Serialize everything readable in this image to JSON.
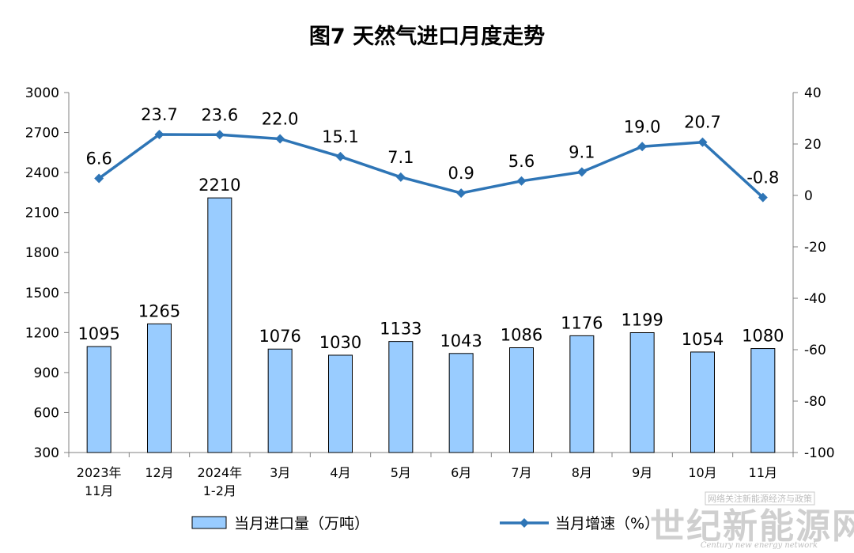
{
  "chart_data": {
    "type": "bar",
    "title": "图7  天然气进口月度走势",
    "categories": [
      [
        "2023年",
        "11月"
      ],
      [
        "12月"
      ],
      [
        "2024年",
        "1-2月"
      ],
      [
        "3月"
      ],
      [
        "4月"
      ],
      [
        "5月"
      ],
      [
        "6月"
      ],
      [
        "7月"
      ],
      [
        "8月"
      ],
      [
        "9月"
      ],
      [
        "10月"
      ],
      [
        "11月"
      ]
    ],
    "series": [
      {
        "name": "当月进口量（万吨）",
        "kind": "bar",
        "axis": "left",
        "color": "#99ccff",
        "values": [
          1095,
          1265,
          2210,
          1076,
          1030,
          1133,
          1043,
          1086,
          1176,
          1199,
          1054,
          1080
        ],
        "labels": [
          "1095",
          "1265",
          "2210",
          "1076",
          "1030",
          "1133",
          "1043",
          "1086",
          "1176",
          "1199",
          "1054",
          "1080"
        ]
      },
      {
        "name": "当月增速（%）",
        "kind": "line",
        "axis": "right",
        "color": "#2e75b6",
        "values": [
          6.6,
          23.7,
          23.6,
          22.0,
          15.1,
          7.1,
          0.9,
          5.6,
          9.1,
          19.0,
          20.7,
          -0.8
        ],
        "labels": [
          "6.6",
          "23.7",
          "23.6",
          "22.0",
          "15.1",
          "7.1",
          "0.9",
          "5.6",
          "9.1",
          "19.0",
          "20.7",
          "-0.8"
        ]
      }
    ],
    "y_left": {
      "min": 300,
      "max": 3000,
      "step": 300,
      "ticks": [
        "300",
        "600",
        "900",
        "1200",
        "1500",
        "1800",
        "2100",
        "2400",
        "2700",
        "3000"
      ]
    },
    "y_right": {
      "min": -100,
      "max": 40,
      "step": 20,
      "ticks": [
        "-100",
        "-80",
        "-60",
        "-40",
        "-20",
        "0",
        "20",
        "40"
      ]
    },
    "grid": false,
    "legend_position": "bottom"
  },
  "watermark": {
    "boxed_text": "网络关注新能源经济与政策",
    "main_text": "世纪新能源网",
    "english_text": "Century new energy network"
  }
}
